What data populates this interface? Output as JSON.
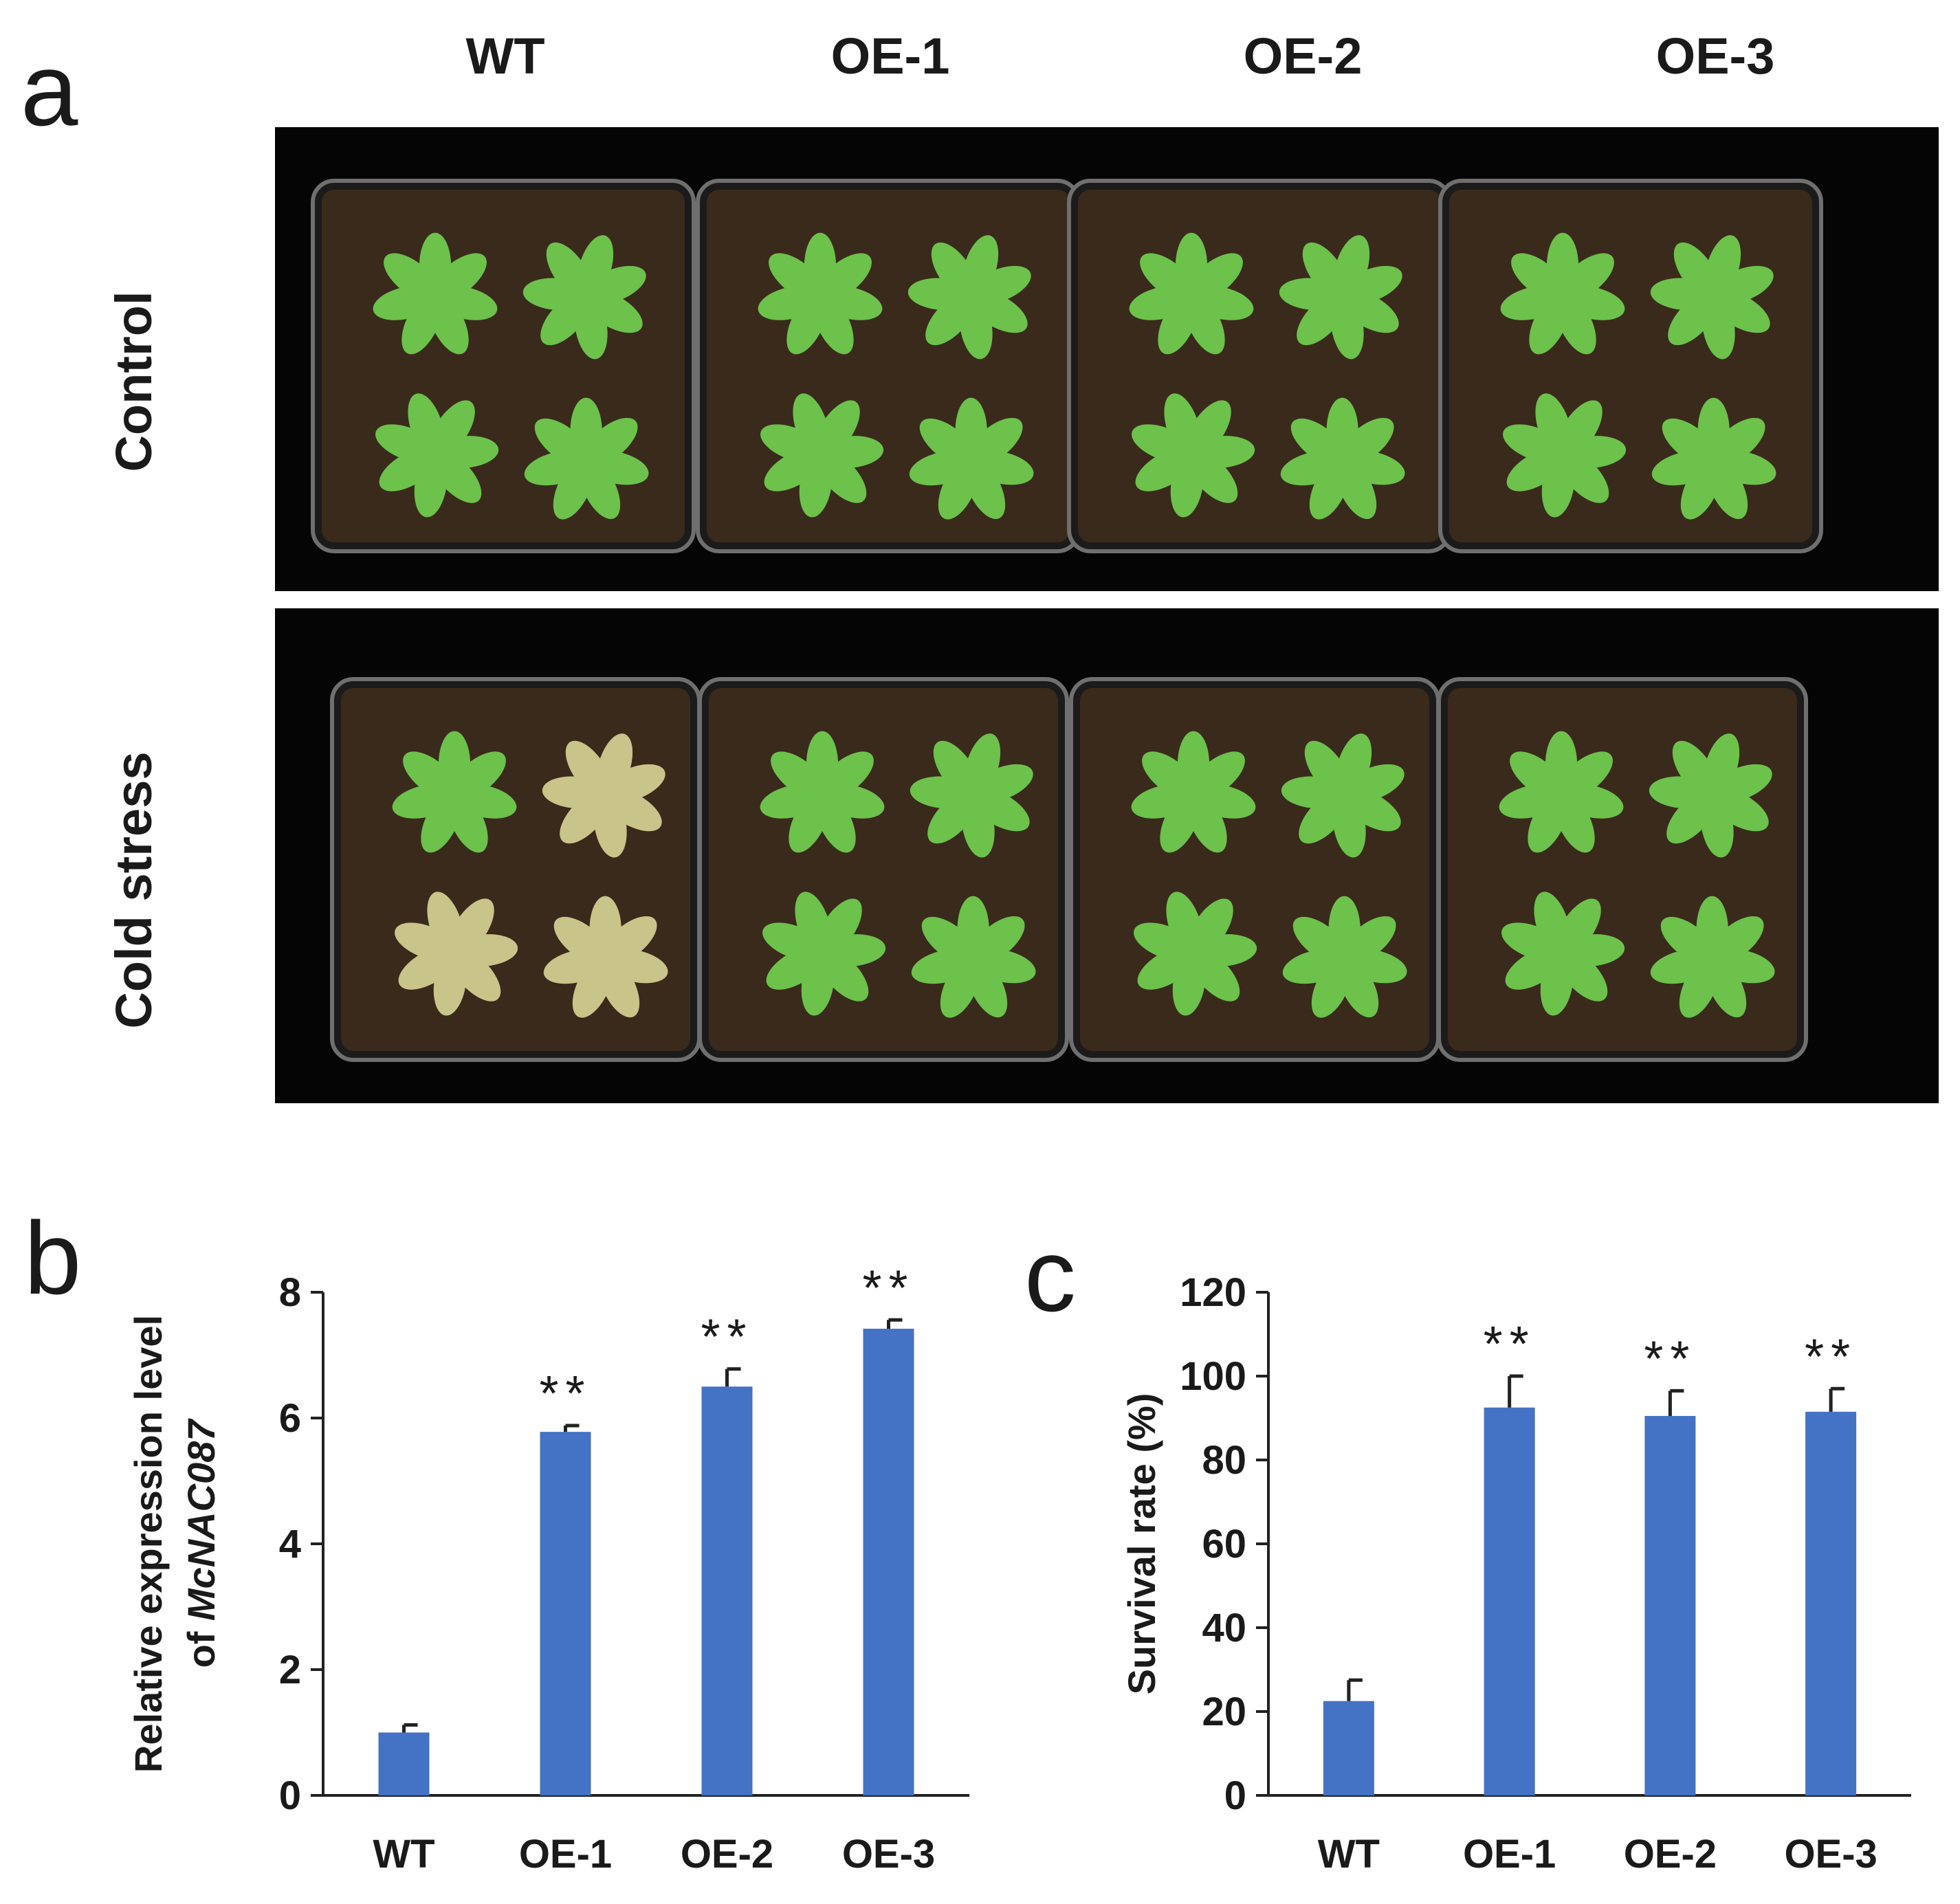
{
  "figure": {
    "panel_labels": {
      "a": "a",
      "b": "b",
      "c": "c"
    },
    "column_labels": [
      "WT",
      "OE-1",
      "OE-2",
      "OE-3"
    ],
    "row_labels": [
      "Control",
      "Cold stress"
    ]
  },
  "photo_grid": {
    "rows": [
      {
        "name": "Control",
        "plant_state": [
          "healthy",
          "healthy",
          "healthy",
          "healthy"
        ]
      },
      {
        "name": "Cold stress",
        "plant_state": [
          "damaged",
          "healthy",
          "healthy",
          "healthy"
        ]
      }
    ],
    "colors": {
      "background": "#050505",
      "soil": "#3a2a1c",
      "leaf": "#6cc24a",
      "wilted_leaf": "#c8c48a",
      "pot_rim": "#6f6f6f"
    }
  },
  "chart_data": [
    {
      "type": "bar",
      "panel": "b",
      "categories": [
        "WT",
        "OE-1",
        "OE-2",
        "OE-3"
      ],
      "values": [
        1.0,
        5.78,
        6.5,
        7.42
      ],
      "errors": [
        0.12,
        0.1,
        0.28,
        0.14
      ],
      "significance": [
        "",
        "**",
        "**",
        "**"
      ],
      "ylabel_line1": "Relative expression level",
      "ylabel_line2_prefix": "of ",
      "ylabel_line2_gene": "McNAC087",
      "ylim": [
        0,
        8
      ],
      "yticks": [
        "0",
        "2",
        "4",
        "6",
        "8"
      ],
      "bar_color": "#4472c4",
      "grid": false
    },
    {
      "type": "bar",
      "panel": "c",
      "categories": [
        "WT",
        "OE-1",
        "OE-2",
        "OE-3"
      ],
      "values": [
        22.5,
        92.5,
        90.5,
        91.5
      ],
      "errors": [
        5,
        7.5,
        6,
        5.5
      ],
      "significance": [
        "",
        "**",
        "**",
        "**"
      ],
      "ylabel": "Survival rate (%)",
      "ylim": [
        0,
        120
      ],
      "yticks": [
        "0",
        "20",
        "40",
        "60",
        "80",
        "100",
        "120"
      ],
      "bar_color": "#4472c4",
      "grid": false
    }
  ]
}
